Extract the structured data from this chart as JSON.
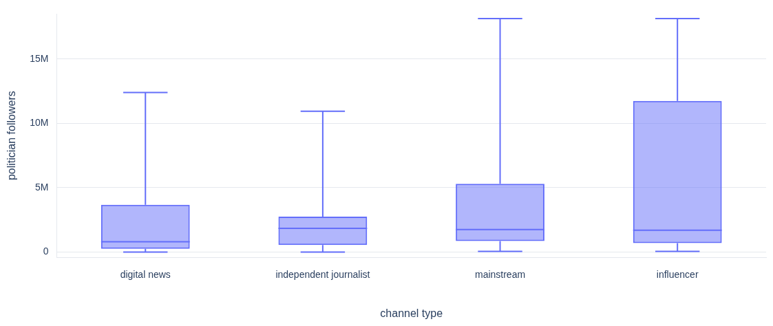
{
  "chart_data": {
    "type": "box",
    "xlabel": "channel type",
    "ylabel": "politician followers",
    "categories": [
      "digital news",
      "independent journalist",
      "mainstream",
      "influencer"
    ],
    "series": [
      {
        "color": "#636efa",
        "boxes": [
          {
            "low": 0,
            "q1": 250000,
            "median": 800000,
            "q3": 3680000,
            "high": 12400000
          },
          {
            "low": 0,
            "q1": 550000,
            "median": 1850000,
            "q3": 2750000,
            "high": 10950000
          },
          {
            "low": 50000,
            "q1": 850000,
            "median": 1750000,
            "q3": 5300000,
            "high": 18150000
          },
          {
            "low": 50000,
            "q1": 700000,
            "median": 1700000,
            "q3": 11750000,
            "high": 18150000
          }
        ]
      }
    ],
    "ylim": [
      -400000,
      18500000
    ],
    "yticks": [
      0,
      {
        "value": 5000000,
        "label": "5M"
      },
      {
        "value": 10000000,
        "label": "10M"
      },
      {
        "value": 15000000,
        "label": "15M"
      }
    ],
    "grid": "y",
    "legend": false
  }
}
